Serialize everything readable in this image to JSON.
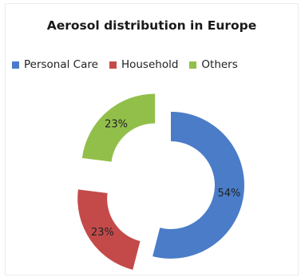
{
  "chart_data": {
    "type": "pie",
    "title": "Aerosol distribution in Europe",
    "categories": [
      "Personal Care",
      "Household",
      "Others"
    ],
    "values": [
      54,
      23,
      23
    ],
    "labels": [
      "54%",
      "23%",
      "23%"
    ],
    "colors": [
      "#4a7cc8",
      "#c44a4a",
      "#92bf4a"
    ],
    "legend_position": "top"
  }
}
